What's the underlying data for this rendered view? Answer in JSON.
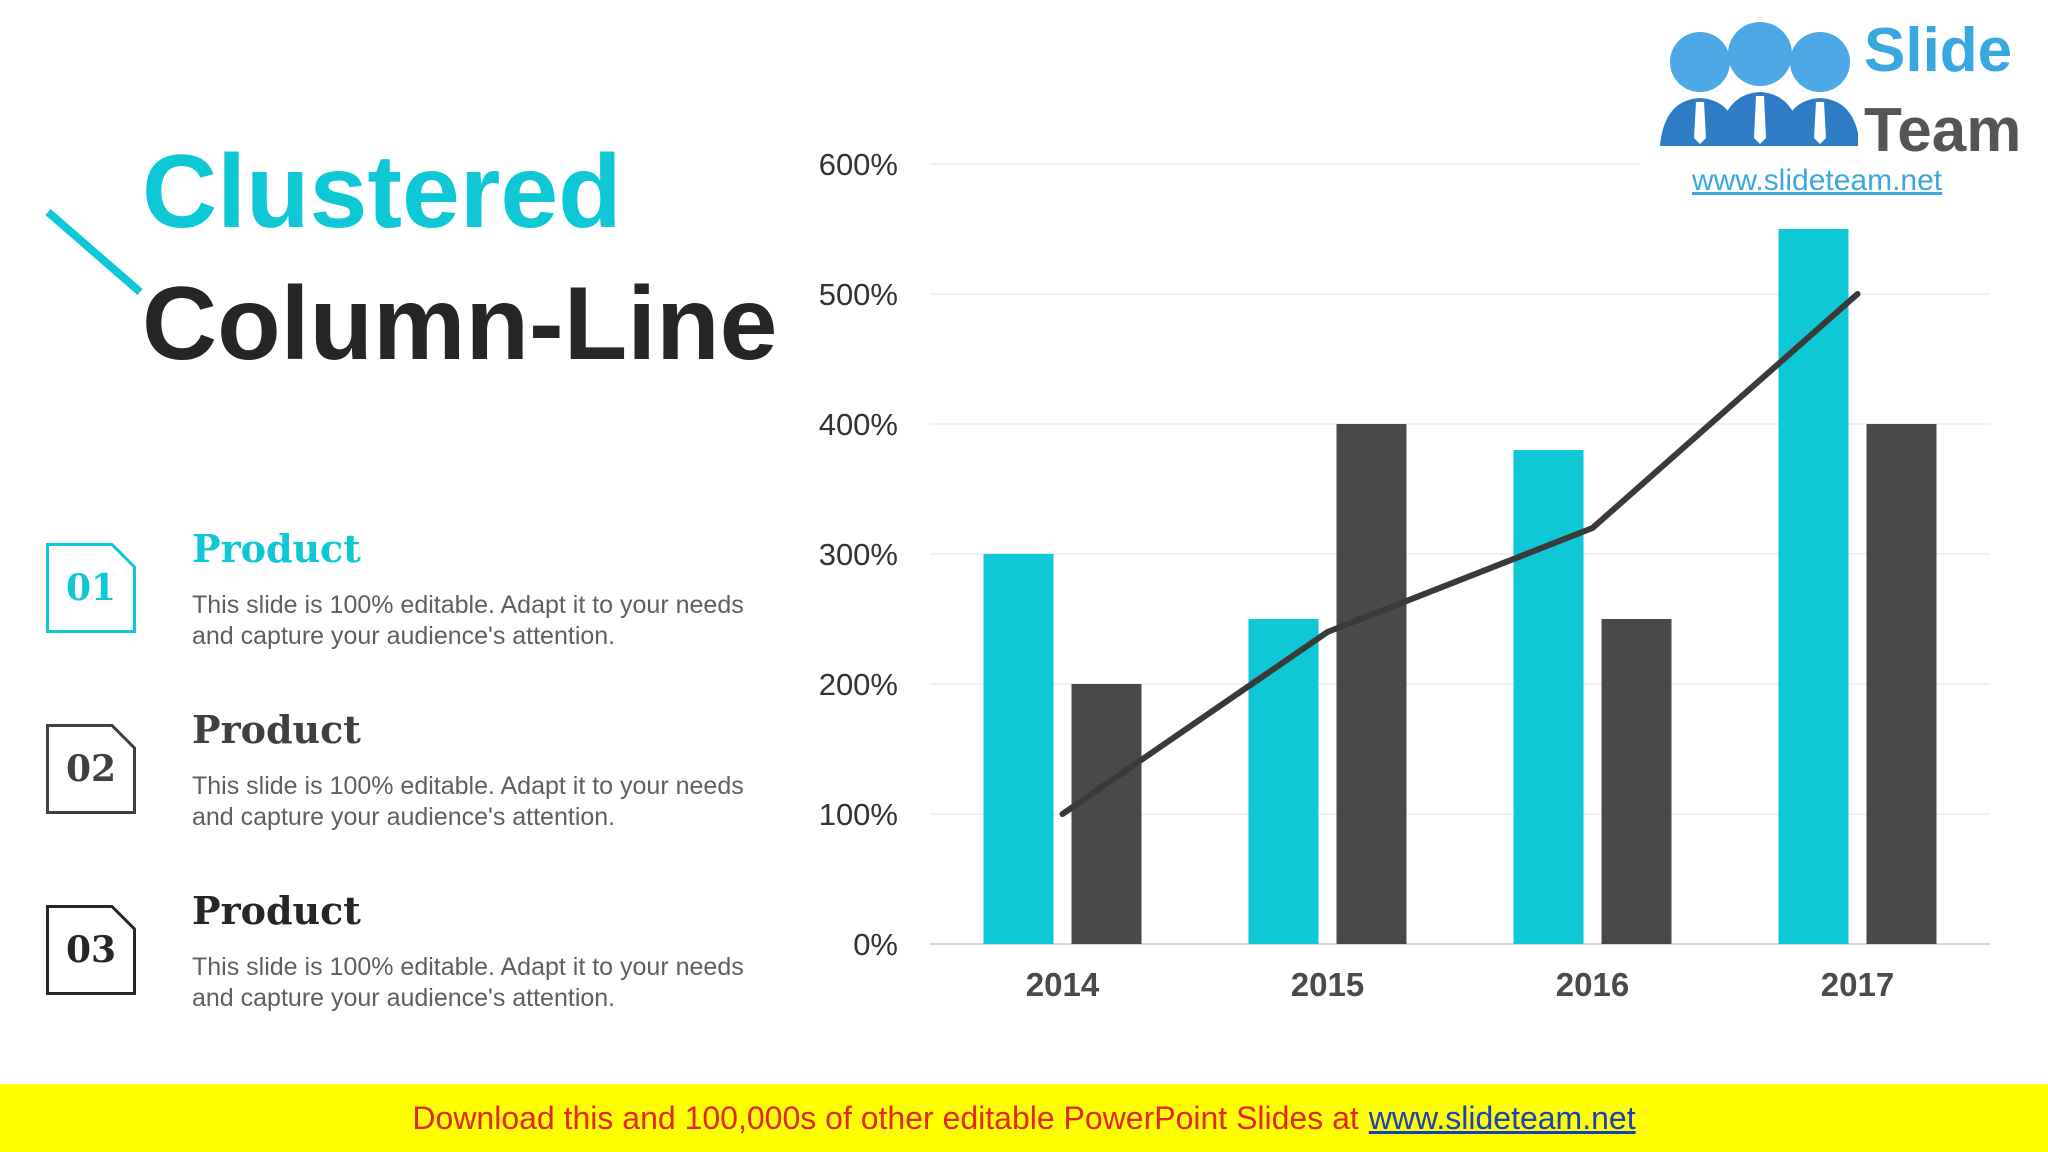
{
  "title": {
    "line1": "Clustered",
    "line2": "Column-Line"
  },
  "items": [
    {
      "num": "01",
      "heading": "Product",
      "desc": "This slide is 100% editable. Adapt it to your needs and capture your audience's attention.",
      "color": "#0fc8d6"
    },
    {
      "num": "02",
      "heading": "Product",
      "desc": "This slide is 100% editable. Adapt it to your needs and capture your audience's attention.",
      "color": "#404040"
    },
    {
      "num": "03",
      "heading": "Product",
      "desc": "This slide is 100% editable. Adapt it to your needs and capture your audience's attention.",
      "color": "#262626"
    }
  ],
  "logo": {
    "slide": "Slide",
    "team": "Team",
    "url": "www.slideteam.net"
  },
  "banner": {
    "message": "Download this and 100,000s of other editable PowerPoint Slides at",
    "link": "www.slideteam.net"
  },
  "colors": {
    "accent": "#0fc8d6",
    "dark": "#4a494a",
    "line": "#3a3a3a",
    "banner_bg": "#ffff00"
  },
  "chart_data": {
    "type": "bar",
    "categories": [
      "2014",
      "2015",
      "2016",
      "2017"
    ],
    "series": [
      {
        "type": "bar",
        "values": [
          3.0,
          2.5,
          3.8,
          5.5
        ],
        "color": "#0fc8d6"
      },
      {
        "type": "bar",
        "values": [
          2.0,
          4.0,
          2.5,
          4.0
        ],
        "color": "#4a494a"
      },
      {
        "type": "line",
        "values": [
          1.0,
          2.4,
          3.2,
          5.0
        ],
        "color": "#3a3a3a"
      }
    ],
    "ylim": [
      0,
      6
    ],
    "yticks": [
      "0%",
      "100%",
      "200%",
      "300%",
      "400%",
      "500%",
      "600%"
    ],
    "grid": true,
    "legend": "none"
  }
}
